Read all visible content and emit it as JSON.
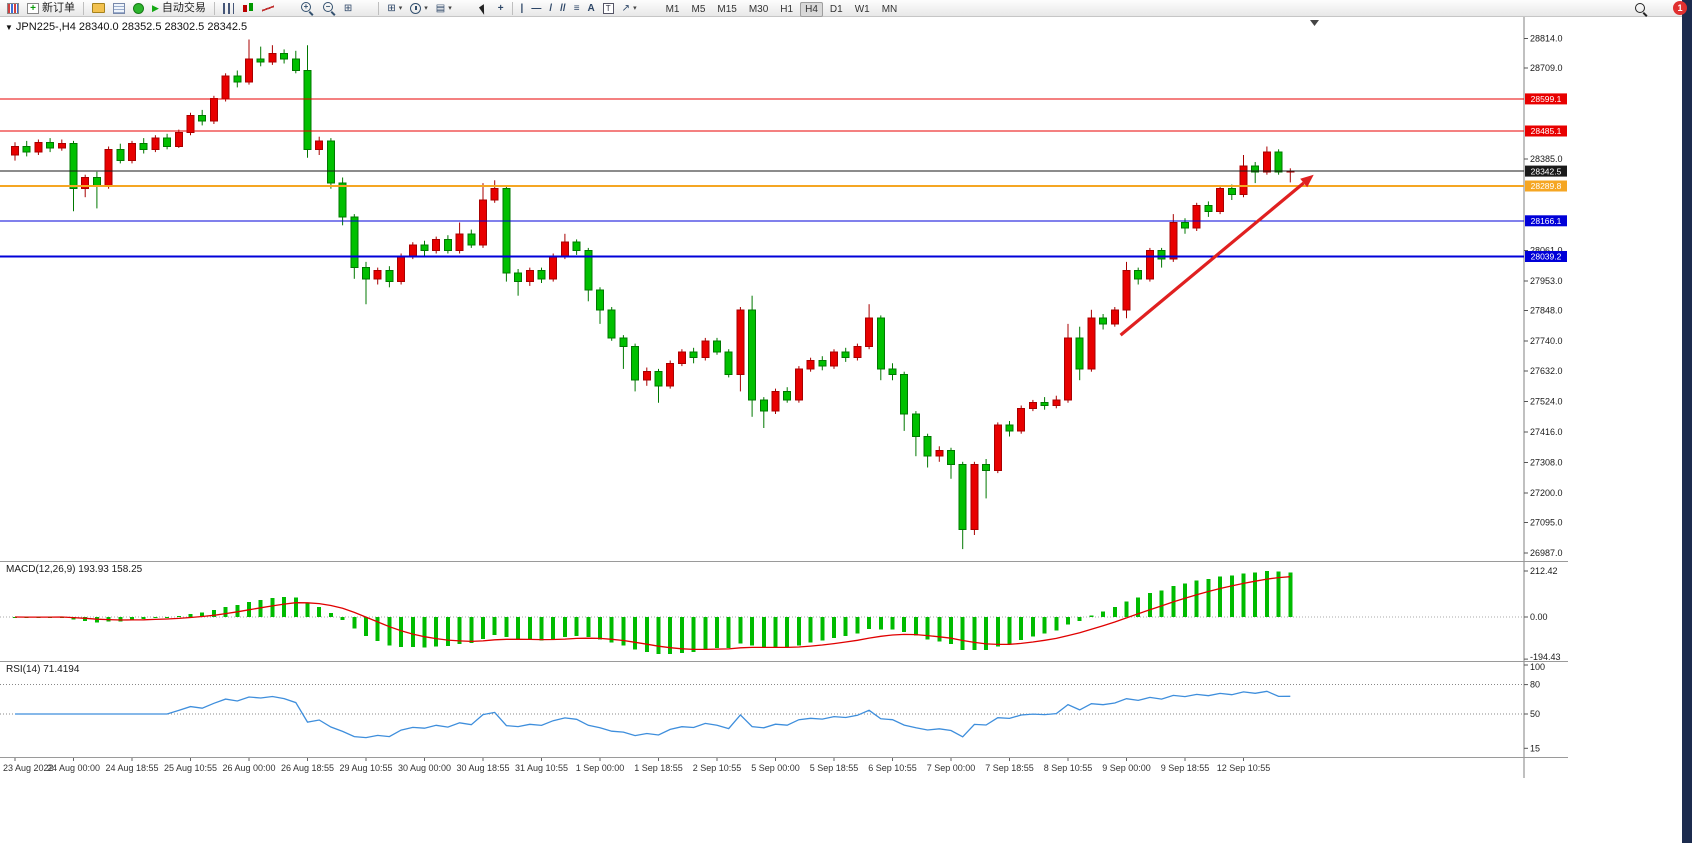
{
  "toolbar": {
    "new_order_label": "新订单",
    "auto_trading_label": "自动交易",
    "timeframes": [
      "M1",
      "M5",
      "M15",
      "M30",
      "H1",
      "H4",
      "D1",
      "W1",
      "MN"
    ],
    "active_timeframe": "H4",
    "notification_count": "1",
    "icons": {
      "plus": "+",
      "minus": "−",
      "play": "▶",
      "tile": "⊞",
      "template": "▤",
      "caret": "▾",
      "crosshair": "+",
      "vline": "|",
      "hline": "—",
      "trendline": "/",
      "channel": "//",
      "fibonacci": "≡",
      "text_tool": "A",
      "label_tool": "T",
      "arrow_tool": "↗",
      "collapse": "▼"
    }
  },
  "chart": {
    "title": "JPN225-,H4 28340.0 28352.5 28302.5 28342.5",
    "price_axis_ticks": [
      "28814.0",
      "28709.0",
      "28385.0",
      "28061.0",
      "27953.0",
      "27848.0",
      "27740.0",
      "27632.0",
      "27524.0",
      "27416.0",
      "27308.0",
      "27200.0",
      "27095.0",
      "26987.0"
    ],
    "levels": [
      {
        "price": 28599.1,
        "label": "28599.1",
        "color": "#e80000",
        "width": 1
      },
      {
        "price": 28485.1,
        "label": "28485.1",
        "color": "#e80000",
        "width": 1
      },
      {
        "price": 28342.5,
        "label": "28342.5",
        "color": "#1a1a1a",
        "width": 1
      },
      {
        "price": 28289.8,
        "label": "28289.8",
        "color": "#f5a623",
        "width": 2
      },
      {
        "price": 28166.1,
        "label": "28166.1",
        "color": "#0000d8",
        "width": 1
      },
      {
        "price": 28039.2,
        "label": "28039.2",
        "color": "#0000d8",
        "width": 2
      }
    ],
    "arrow": {
      "from_index": 94.5,
      "from_price": 27760,
      "to_index": 111,
      "to_price": 28330,
      "color": "#e02020"
    },
    "colors": {
      "bull": "#e80000",
      "bull_border": "#a80000",
      "bear": "#00c000",
      "bear_border": "#007800"
    }
  },
  "indicators": {
    "macd": {
      "label": "MACD(12,26,9) 193.93 158.25",
      "params": [
        12,
        26,
        9
      ],
      "display_values": [
        193.93,
        158.25
      ],
      "y_ticks": [
        "212.42",
        "0.00",
        "-194.43"
      ],
      "histogram_color": "#00bb00",
      "signal_color": "#e00000"
    },
    "rsi": {
      "label": "RSI(14) 71.4194",
      "params": [
        14
      ],
      "value": 71.4194,
      "y_ticks": [
        "100",
        "80",
        "50",
        "15"
      ],
      "levels": [
        80,
        50
      ],
      "line_color": "#3e8edc"
    }
  },
  "chart_data": {
    "type": "candlestick",
    "symbol": "JPN225-",
    "period": "H4",
    "last_ohlc": {
      "open": 28340.0,
      "high": 28352.5,
      "low": 28302.5,
      "close": 28342.5
    },
    "x_label_step": 5,
    "x_labels": [
      "23 Aug 2022",
      "24 Aug 00:00",
      "24 Aug 18:55",
      "25 Aug 10:55",
      "26 Aug 00:00",
      "26 Aug 18:55",
      "29 Aug 10:55",
      "30 Aug 00:00",
      "30 Aug 18:55",
      "31 Aug 10:55",
      "1 Sep 00:00",
      "1 Sep 18:55",
      "2 Sep 10:55",
      "5 Sep 00:00",
      "5 Sep 18:55",
      "6 Sep 10:55",
      "7 Sep 00:00",
      "7 Sep 18:55",
      "8 Sep 10:55",
      "9 Sep 00:00",
      "9 Sep 18:55",
      "12 Sep 10:55"
    ],
    "candles": [
      [
        28400,
        28445,
        28380,
        28430
      ],
      [
        28430,
        28450,
        28395,
        28410
      ],
      [
        28410,
        28455,
        28400,
        28445
      ],
      [
        28445,
        28460,
        28410,
        28425
      ],
      [
        28425,
        28455,
        28415,
        28440
      ],
      [
        28440,
        28450,
        28200,
        28280
      ],
      [
        28280,
        28330,
        28250,
        28320
      ],
      [
        28320,
        28340,
        28210,
        28290
      ],
      [
        28290,
        28430,
        28280,
        28420
      ],
      [
        28420,
        28440,
        28370,
        28380
      ],
      [
        28380,
        28450,
        28370,
        28440
      ],
      [
        28440,
        28460,
        28405,
        28420
      ],
      [
        28420,
        28470,
        28410,
        28460
      ],
      [
        28460,
        28475,
        28420,
        28430
      ],
      [
        28430,
        28490,
        28425,
        28480
      ],
      [
        28480,
        28550,
        28470,
        28540
      ],
      [
        28540,
        28560,
        28505,
        28520
      ],
      [
        28520,
        28610,
        28510,
        28600
      ],
      [
        28600,
        28690,
        28590,
        28680
      ],
      [
        28680,
        28700,
        28640,
        28660
      ],
      [
        28660,
        28810,
        28650,
        28740
      ],
      [
        28740,
        28785,
        28715,
        28730
      ],
      [
        28730,
        28790,
        28720,
        28760
      ],
      [
        28760,
        28775,
        28725,
        28740
      ],
      [
        28740,
        28770,
        28690,
        28700
      ],
      [
        28700,
        28790,
        28390,
        28420
      ],
      [
        28420,
        28465,
        28400,
        28450
      ],
      [
        28450,
        28460,
        28280,
        28300
      ],
      [
        28300,
        28320,
        28150,
        28180
      ],
      [
        28180,
        28190,
        27960,
        28000
      ],
      [
        28000,
        28020,
        27870,
        27960
      ],
      [
        27960,
        28000,
        27940,
        27990
      ],
      [
        27990,
        28005,
        27930,
        27950
      ],
      [
        27950,
        28050,
        27940,
        28040
      ],
      [
        28040,
        28090,
        28030,
        28080
      ],
      [
        28080,
        28095,
        28040,
        28060
      ],
      [
        28060,
        28110,
        28050,
        28100
      ],
      [
        28100,
        28115,
        28050,
        28060
      ],
      [
        28060,
        28160,
        28050,
        28120
      ],
      [
        28120,
        28135,
        28070,
        28080
      ],
      [
        28080,
        28300,
        28070,
        28240
      ],
      [
        28240,
        28310,
        28230,
        28280
      ],
      [
        28280,
        28290,
        27950,
        27980
      ],
      [
        27980,
        27995,
        27900,
        27950
      ],
      [
        27950,
        28000,
        27935,
        27990
      ],
      [
        27990,
        28000,
        27945,
        27960
      ],
      [
        27960,
        28050,
        27950,
        28040
      ],
      [
        28040,
        28120,
        28030,
        28090
      ],
      [
        28090,
        28100,
        28045,
        28060
      ],
      [
        28060,
        28070,
        27880,
        27920
      ],
      [
        27920,
        27930,
        27800,
        27850
      ],
      [
        27850,
        27860,
        27740,
        27750
      ],
      [
        27750,
        27760,
        27640,
        27720
      ],
      [
        27720,
        27730,
        27560,
        27600
      ],
      [
        27600,
        27645,
        27580,
        27630
      ],
      [
        27630,
        27640,
        27520,
        27580
      ],
      [
        27580,
        27670,
        27570,
        27660
      ],
      [
        27660,
        27710,
        27650,
        27700
      ],
      [
        27700,
        27715,
        27660,
        27680
      ],
      [
        27680,
        27750,
        27670,
        27740
      ],
      [
        27740,
        27750,
        27690,
        27700
      ],
      [
        27700,
        27710,
        27610,
        27620
      ],
      [
        27620,
        27860,
        27560,
        27850
      ],
      [
        27850,
        27900,
        27470,
        27530
      ],
      [
        27530,
        27540,
        27430,
        27490
      ],
      [
        27490,
        27570,
        27480,
        27560
      ],
      [
        27560,
        27575,
        27520,
        27530
      ],
      [
        27530,
        27650,
        27520,
        27640
      ],
      [
        27640,
        27680,
        27630,
        27670
      ],
      [
        27670,
        27685,
        27635,
        27650
      ],
      [
        27650,
        27710,
        27640,
        27700
      ],
      [
        27700,
        27715,
        27665,
        27680
      ],
      [
        27680,
        27730,
        27670,
        27720
      ],
      [
        27720,
        27870,
        27710,
        27820
      ],
      [
        27820,
        27830,
        27600,
        27640
      ],
      [
        27640,
        27660,
        27600,
        27620
      ],
      [
        27620,
        27630,
        27420,
        27480
      ],
      [
        27480,
        27490,
        27330,
        27400
      ],
      [
        27400,
        27410,
        27290,
        27330
      ],
      [
        27330,
        27365,
        27310,
        27350
      ],
      [
        27350,
        27360,
        27250,
        27300
      ],
      [
        27300,
        27310,
        27000,
        27070
      ],
      [
        27070,
        27310,
        27050,
        27300
      ],
      [
        27300,
        27320,
        27180,
        27280
      ],
      [
        27280,
        27450,
        27270,
        27440
      ],
      [
        27440,
        27455,
        27400,
        27420
      ],
      [
        27420,
        27510,
        27410,
        27500
      ],
      [
        27500,
        27530,
        27490,
        27520
      ],
      [
        27520,
        27540,
        27495,
        27510
      ],
      [
        27510,
        27545,
        27500,
        27530
      ],
      [
        27530,
        27800,
        27520,
        27750
      ],
      [
        27750,
        27790,
        27600,
        27640
      ],
      [
        27640,
        27850,
        27630,
        27820
      ],
      [
        27820,
        27835,
        27780,
        27800
      ],
      [
        27800,
        27860,
        27790,
        27850
      ],
      [
        27850,
        28020,
        27820,
        27990
      ],
      [
        27990,
        28000,
        27940,
        27960
      ],
      [
        27960,
        28070,
        27950,
        28060
      ],
      [
        28060,
        28070,
        28000,
        28030
      ],
      [
        28030,
        28190,
        28020,
        28160
      ],
      [
        28160,
        28175,
        28120,
        28140
      ],
      [
        28140,
        28230,
        28130,
        28220
      ],
      [
        28220,
        28235,
        28180,
        28200
      ],
      [
        28200,
        28290,
        28190,
        28280
      ],
      [
        28280,
        28295,
        28240,
        28260
      ],
      [
        28260,
        28400,
        28250,
        28360
      ],
      [
        28360,
        28375,
        28300,
        28340
      ],
      [
        28340,
        28430,
        28330,
        28410
      ],
      [
        28410,
        28420,
        28330,
        28340
      ],
      [
        28340,
        28352.5,
        28302.5,
        28342.5
      ]
    ]
  }
}
